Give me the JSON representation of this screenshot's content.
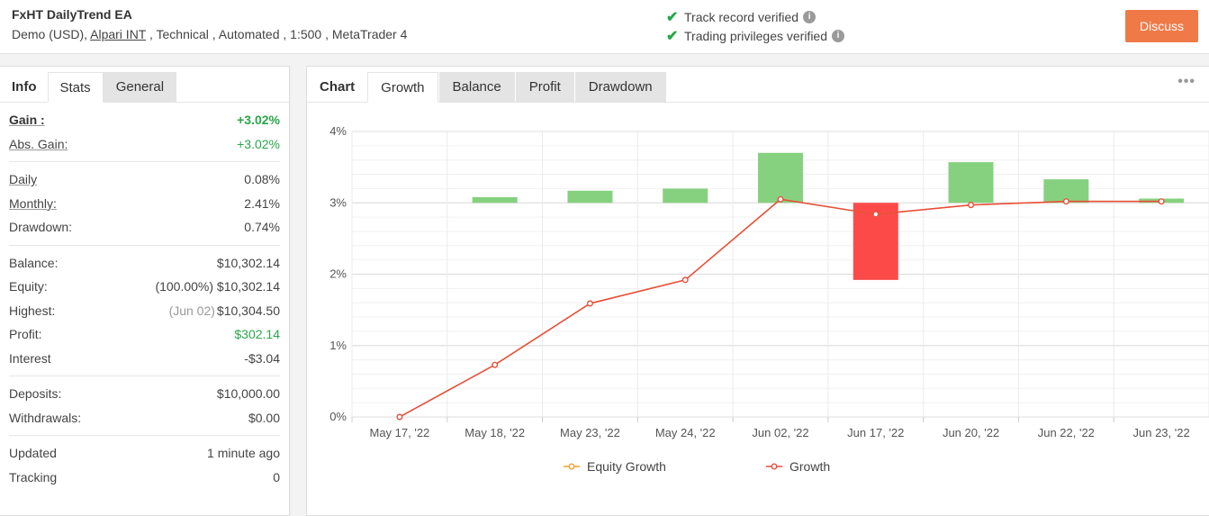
{
  "header": {
    "system_name": "FxHT DailyTrend EA",
    "account_prefix": "Demo (USD), ",
    "broker": "Alpari INT",
    "account_suffix": " , Technical , Automated , 1:500 , MetaTrader 4",
    "track_record": "Track record verified",
    "trading_privileges": "Trading privileges verified",
    "discuss_label": "Discuss",
    "accent_color": "#f07a47"
  },
  "left_tabs": {
    "title": "Info",
    "active": "Stats",
    "other": "General"
  },
  "stats": {
    "gain_label": "Gain :",
    "gain_value": "+3.02%",
    "abs_gain_label": "Abs. Gain:",
    "abs_gain_value": "+3.02%",
    "daily_label": "Daily",
    "daily_value": "0.08%",
    "monthly_label": "Monthly:",
    "monthly_value": "2.41%",
    "drawdown_label": "Drawdown:",
    "drawdown_value": "0.74%",
    "balance_label": "Balance:",
    "balance_value": "$10,302.14",
    "equity_label": "Equity:",
    "equity_pct": "(100.00%)",
    "equity_value": "$10,302.14",
    "highest_label": "Highest:",
    "highest_date": "(Jun 02)",
    "highest_value": "$10,304.50",
    "profit_label": "Profit:",
    "profit_value": "$302.14",
    "interest_label": "Interest",
    "interest_value": "-$3.04",
    "deposits_label": "Deposits:",
    "deposits_value": "$10,000.00",
    "withdrawals_label": "Withdrawals:",
    "withdrawals_value": "$0.00",
    "updated_label": "Updated",
    "updated_value": "1 minute ago",
    "tracking_label": "Tracking",
    "tracking_value": "0"
  },
  "chart_tabs": {
    "title": "Chart",
    "tabs": [
      "Growth",
      "Balance",
      "Profit",
      "Drawdown"
    ],
    "active": "Growth"
  },
  "chart_data": {
    "type": "line",
    "categories": [
      "May 17, '22",
      "May 18, '22",
      "May 23, '22",
      "May 24, '22",
      "Jun 02, '22",
      "Jun 17, '22",
      "Jun 20, '22",
      "Jun 22, '22",
      "Jun 23, '22"
    ],
    "ylim": [
      0,
      4
    ],
    "yticks": [
      "0%",
      "1%",
      "2%",
      "3%",
      "4%"
    ],
    "series": [
      {
        "name": "Equity Growth",
        "color": "#f0a030",
        "values": [
          0,
          0.73,
          1.59,
          1.92,
          3.05,
          2.84,
          2.97,
          3.02,
          3.02
        ]
      },
      {
        "name": "Growth",
        "color": "#e84c3d",
        "values": [
          0,
          0.73,
          1.59,
          1.92,
          3.05,
          2.84,
          2.97,
          3.02,
          3.02
        ]
      }
    ],
    "bars": {
      "base": 3,
      "positive_color": "#86d17f",
      "negative_color": "#fc4a49",
      "values": [
        null,
        3.08,
        3.17,
        3.2,
        3.7,
        1.92,
        3.57,
        3.33,
        3.06
      ]
    },
    "grid": true,
    "legend": "bottom"
  }
}
